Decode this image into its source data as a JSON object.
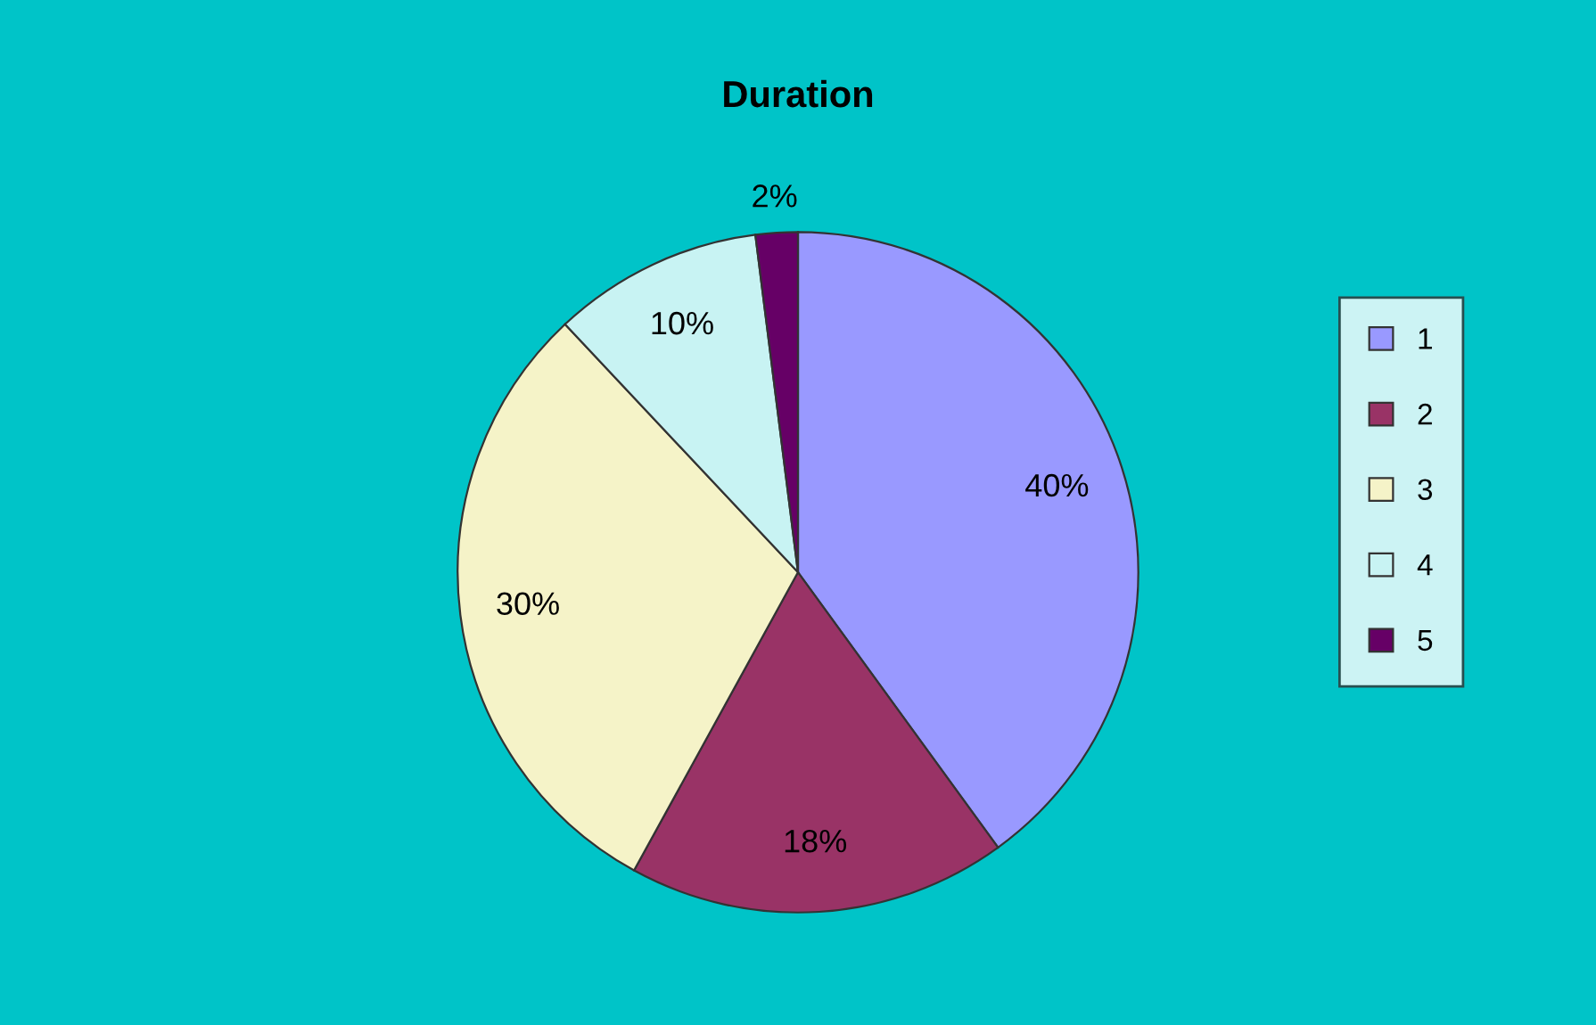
{
  "chart_data": {
    "type": "pie",
    "title": "Duration",
    "categories": [
      "1",
      "2",
      "3",
      "4",
      "5"
    ],
    "values": [
      40,
      18,
      30,
      10,
      2
    ],
    "colors": [
      "#9999ff",
      "#993366",
      "#f5f3c8",
      "#c8f3f3",
      "#660066"
    ],
    "value_labels": [
      "40%",
      "18%",
      "30%",
      "10%",
      "2%"
    ],
    "legend": "right"
  }
}
